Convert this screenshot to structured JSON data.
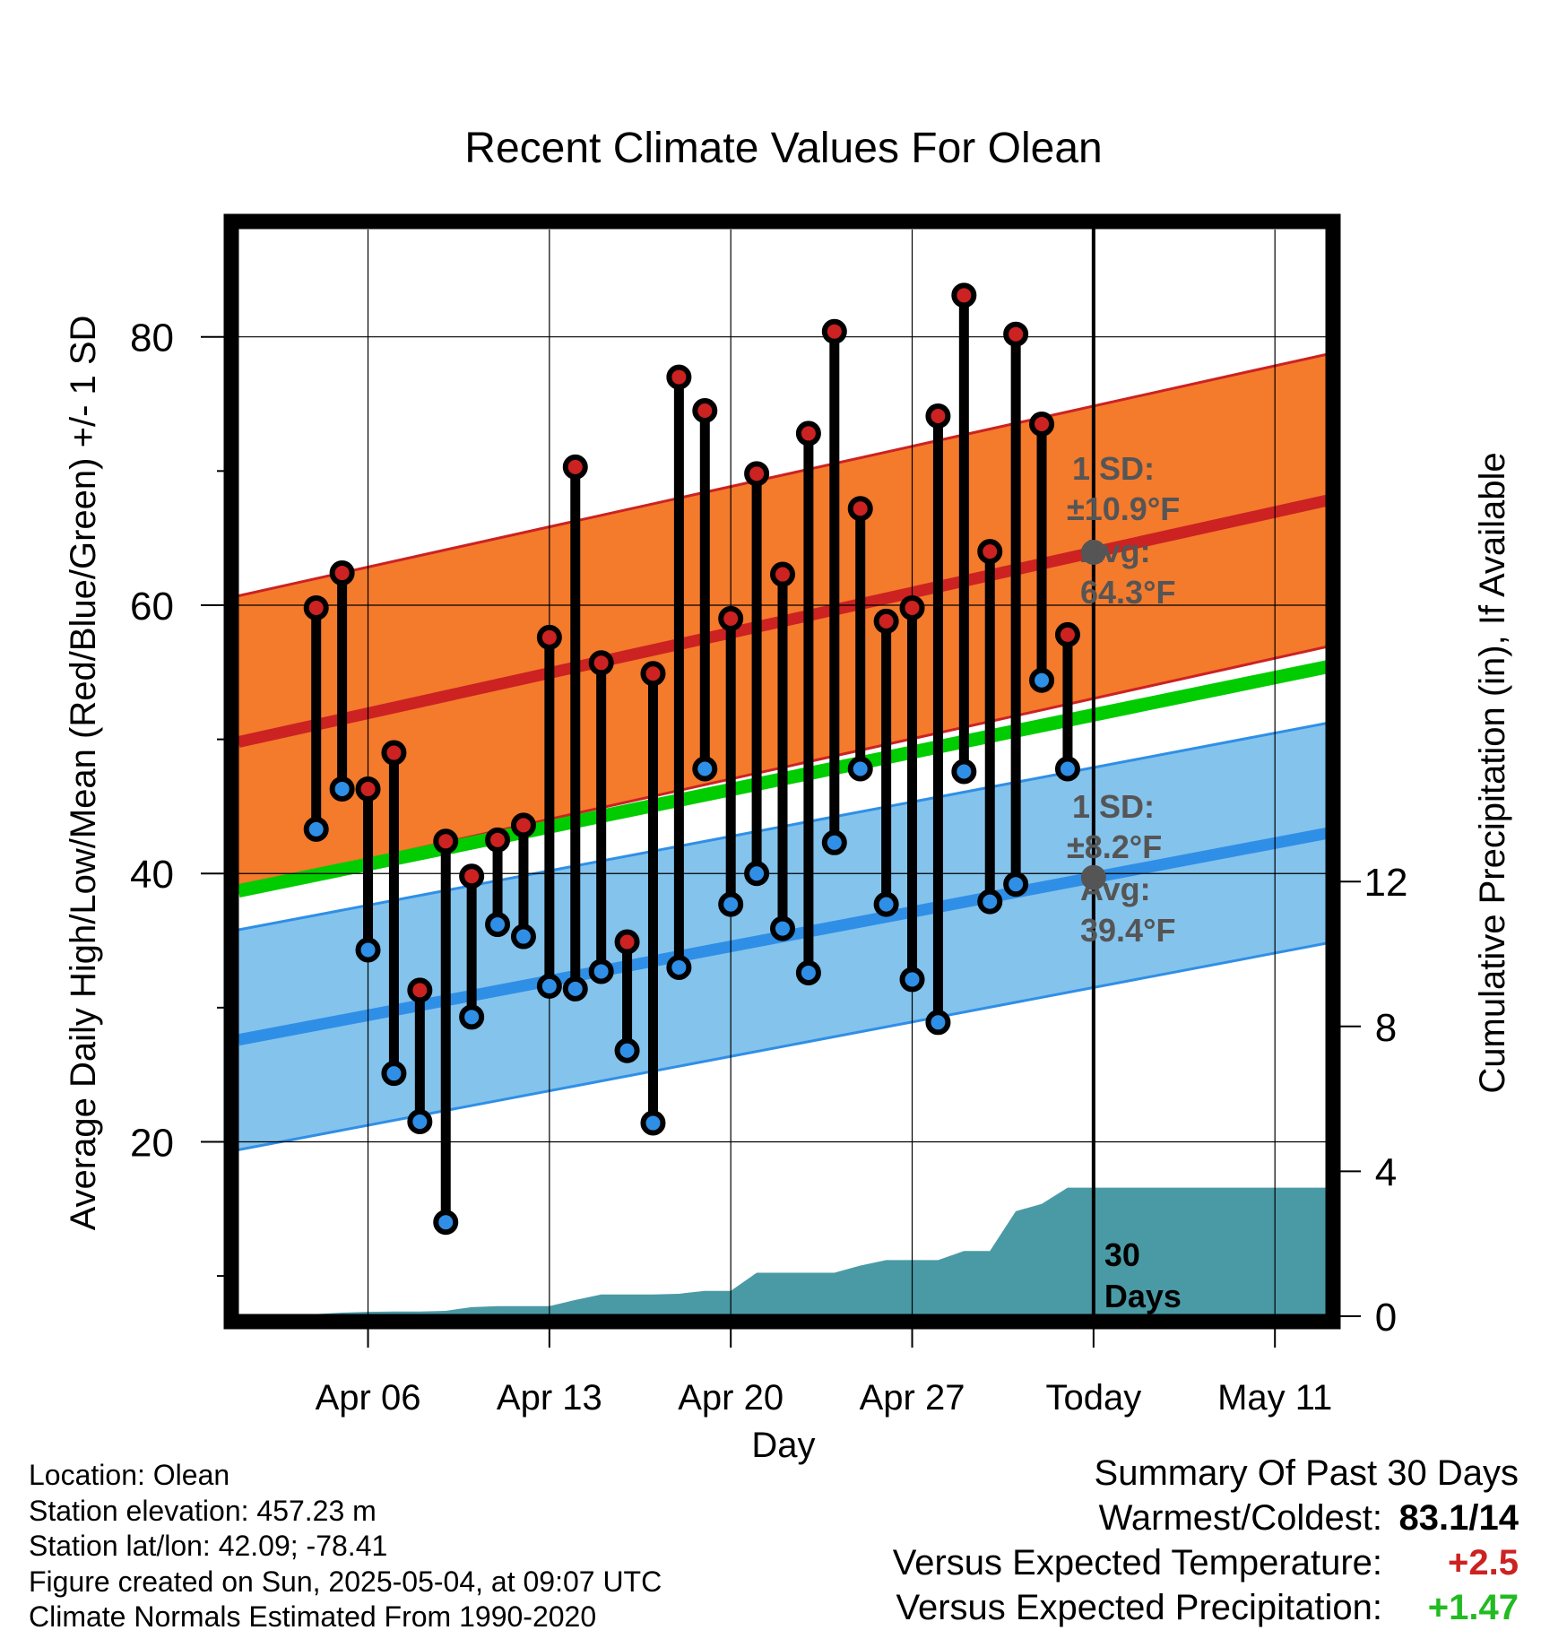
{
  "chart_data": {
    "type": "line",
    "title": "Recent Climate Values For Olean",
    "xlabel": "Day",
    "ylabel": "Average Daily High/Low/Mean (Red/Blue/Green) +/- 1 SD",
    "y2label": "Cumulative Precipitation (in), If Available",
    "ylim": [
      7,
      88
    ],
    "y2lim": [
      0,
      30
    ],
    "x_day_range": [
      1,
      43
    ],
    "x_ticks": [
      {
        "day": 6,
        "label": "Apr 06"
      },
      {
        "day": 13,
        "label": "Apr 13"
      },
      {
        "day": 20,
        "label": "Apr 20"
      },
      {
        "day": 27,
        "label": "Apr 27"
      },
      {
        "day": 34,
        "label": "Today"
      },
      {
        "day": 41,
        "label": "May 11"
      }
    ],
    "y_ticks": [
      20,
      40,
      60,
      80
    ],
    "y_minor_ticks": [
      10,
      30,
      50,
      70
    ],
    "y2_ticks": [
      0,
      4,
      8,
      12
    ],
    "grid": true,
    "today_day": 34,
    "days_label": "30 Days",
    "normal_high": {
      "start": 49.8,
      "end": 67.8,
      "sd_label": "1 SD:",
      "sd_value": "±10.9°F",
      "sd": 10.9,
      "avg_label": "Avg:",
      "avg_value": "64.3°F",
      "avg": 64.3
    },
    "normal_low": {
      "start": 27.6,
      "end": 43.0,
      "sd_label": "1 SD:",
      "sd_value": "±8.2°F",
      "sd": 8.2,
      "avg_label": "Avg:",
      "avg_value": "39.4°F",
      "avg": 39.4
    },
    "normal_mean": {
      "start": 38.7,
      "end": 55.4
    },
    "series": [
      {
        "name": "High",
        "color": "#cc2222",
        "day_start": 4,
        "values": [
          59.8,
          62.4,
          46.3,
          49.0,
          31.3,
          42.4,
          39.8,
          42.5,
          43.6,
          57.6,
          70.3,
          55.7,
          34.9,
          54.9,
          77.0,
          74.5,
          59.0,
          69.8,
          62.3,
          72.8,
          80.4,
          67.2,
          58.8,
          59.8,
          74.1,
          83.1,
          64.0,
          80.2,
          73.5,
          57.8
        ]
      },
      {
        "name": "Low",
        "color": "#2f8fe6",
        "day_start": 4,
        "values": [
          43.3,
          46.3,
          34.3,
          25.1,
          21.5,
          14.0,
          29.3,
          36.2,
          35.3,
          31.6,
          31.4,
          32.7,
          26.8,
          21.4,
          33.0,
          47.8,
          37.7,
          40.0,
          35.9,
          32.6,
          42.3,
          47.8,
          37.7,
          32.1,
          28.9,
          47.6,
          37.9,
          39.2,
          54.4,
          47.8
        ]
      }
    ],
    "precip_cumulative": [
      {
        "day": 2.5,
        "value": 0
      },
      {
        "day": 5,
        "value": 0.1
      },
      {
        "day": 6,
        "value": 0.12
      },
      {
        "day": 7,
        "value": 0.13
      },
      {
        "day": 8,
        "value": 0.13
      },
      {
        "day": 9,
        "value": 0.15
      },
      {
        "day": 10,
        "value": 0.25
      },
      {
        "day": 11,
        "value": 0.28
      },
      {
        "day": 12,
        "value": 0.28
      },
      {
        "day": 13,
        "value": 0.28
      },
      {
        "day": 14,
        "value": 0.45
      },
      {
        "day": 15,
        "value": 0.6
      },
      {
        "day": 16,
        "value": 0.6
      },
      {
        "day": 17,
        "value": 0.6
      },
      {
        "day": 18,
        "value": 0.62
      },
      {
        "day": 19,
        "value": 0.7
      },
      {
        "day": 20,
        "value": 0.7
      },
      {
        "day": 21,
        "value": 1.2
      },
      {
        "day": 22,
        "value": 1.2
      },
      {
        "day": 23,
        "value": 1.2
      },
      {
        "day": 24,
        "value": 1.2
      },
      {
        "day": 25,
        "value": 1.4
      },
      {
        "day": 26,
        "value": 1.55
      },
      {
        "day": 27,
        "value": 1.55
      },
      {
        "day": 28,
        "value": 1.55
      },
      {
        "day": 29,
        "value": 1.8
      },
      {
        "day": 30,
        "value": 1.8
      },
      {
        "day": 31,
        "value": 2.9
      },
      {
        "day": 32,
        "value": 3.1
      },
      {
        "day": 33,
        "value": 3.55
      },
      {
        "day": 34,
        "value": 3.55
      },
      {
        "day": 43,
        "value": 3.55
      }
    ]
  },
  "colors": {
    "high_band": "#f47a2c",
    "high_line": "#cc2222",
    "low_band": "#84c3ec",
    "low_line": "#2f8fe6",
    "mean_line": "#00cc00",
    "precip": "#4a9aa6",
    "annotation": "#555555",
    "positive_temp": "#cc2222",
    "positive_precip": "#22bb22"
  },
  "footer": {
    "location": "Location: Olean",
    "elevation": "Station elevation: 457.23 m",
    "latlon": "Station lat/lon: 42.09; -78.41",
    "created": "Figure created on Sun, 2025-05-04, at 09:07 UTC",
    "normals": "Climate Normals Estimated From 1990-2020"
  },
  "summary": {
    "title": "Summary Of Past 30 Days",
    "warmest_label": "Warmest/Coldest:",
    "warmest_value": "83.1/14",
    "temp_label": "Versus Expected Temperature:",
    "temp_value": "+2.5",
    "precip_label": "Versus Expected Precipitation:",
    "precip_value": "+1.47"
  }
}
